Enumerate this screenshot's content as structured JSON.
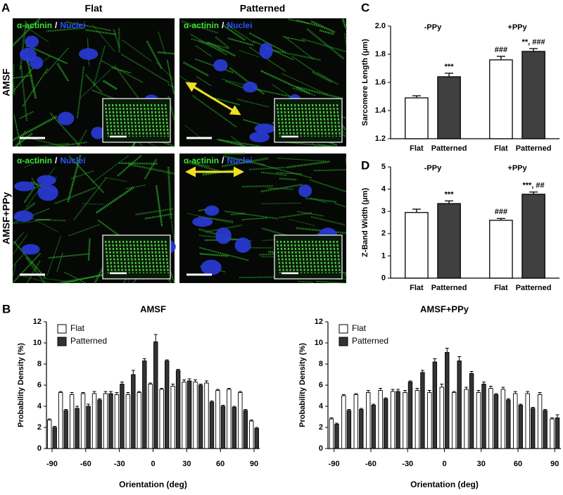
{
  "panel_labels": [
    "A",
    "B",
    "C",
    "D"
  ],
  "images": {
    "columns": [
      "Flat",
      "Patterned"
    ],
    "rows": [
      "AMSF",
      "AMSF+PPy"
    ],
    "stain_label": "α-actinin",
    "separator": "/",
    "nuclei_label": "Nuclei"
  },
  "chart_data": [
    {
      "type": "bar",
      "ylabel": "Sarcomere Length (μm)",
      "groups": [
        "-PPy",
        "+PPy"
      ],
      "categories": [
        "Flat",
        "Patterned",
        "Flat",
        "Patterned"
      ],
      "values": [
        1.49,
        1.64,
        1.76,
        1.82
      ],
      "errors": [
        0.015,
        0.025,
        0.025,
        0.02
      ],
      "colors": [
        "#ffffff",
        "#404040",
        "#ffffff",
        "#404040"
      ],
      "bar_labels": [
        null,
        "***",
        "###",
        "**, ###"
      ],
      "ylim": [
        1.2,
        2.0
      ],
      "yticks": [
        1.2,
        1.4,
        1.6,
        1.8,
        {
          "value": 2.0,
          "label": "2.0"
        }
      ]
    },
    {
      "type": "bar",
      "ylabel": "Z-Band Width (μm)",
      "groups": [
        "-PPy",
        "+PPy"
      ],
      "categories": [
        "Flat",
        "Patterned",
        "Flat",
        "Patterned"
      ],
      "values": [
        2.95,
        3.35,
        2.6,
        3.77
      ],
      "errors": [
        0.15,
        0.12,
        0.08,
        0.1
      ],
      "colors": [
        "#ffffff",
        "#404040",
        "#ffffff",
        "#404040"
      ],
      "bar_labels": [
        null,
        "***",
        "###",
        "***, ##"
      ],
      "ylim": [
        0,
        5
      ],
      "yticks": [
        0,
        1,
        2,
        3,
        4,
        5
      ]
    },
    {
      "type": "grouped_bar",
      "title": "AMSF",
      "xlabel": "Orientation (deg)",
      "ylabel": "Probability Density (%)",
      "x": [
        -90,
        -80,
        -70,
        -60,
        -50,
        -40,
        -30,
        -20,
        -10,
        0,
        10,
        20,
        30,
        40,
        50,
        60,
        70,
        80,
        90
      ],
      "series": [
        {
          "name": "Flat",
          "color": "#ffffff",
          "values": [
            2.7,
            5.3,
            5.1,
            5.2,
            5.2,
            5.2,
            5.1,
            5.1,
            5.3,
            6.1,
            5.6,
            5.9,
            6.3,
            6.3,
            6.2,
            5.5,
            5.6,
            5.3,
            2.6
          ],
          "errors": [
            0.1,
            0.1,
            0.2,
            0.1,
            0.2,
            0.2,
            0.2,
            0.2,
            0.1,
            0.1,
            0.1,
            0.2,
            0.2,
            0.2,
            0.2,
            0.1,
            0.1,
            0.1,
            0.1
          ]
        },
        {
          "name": "Patterned",
          "color": "#333333",
          "values": [
            2.0,
            3.6,
            3.8,
            4.0,
            4.6,
            5.2,
            6.1,
            7.0,
            8.3,
            10.1,
            8.3,
            7.4,
            6.4,
            6.0,
            4.4,
            4.0,
            3.9,
            3.6,
            1.9
          ],
          "errors": [
            0.1,
            0.1,
            0.2,
            0.2,
            0.1,
            0.2,
            0.2,
            0.4,
            0.2,
            0.7,
            0.1,
            0.1,
            0.2,
            0.1,
            0.1,
            0.1,
            0.1,
            0.1,
            0.1
          ]
        }
      ],
      "xlim": [
        -95,
        95
      ],
      "xticks": [
        -90,
        -60,
        -30,
        0,
        30,
        60,
        90
      ],
      "ylim": [
        0,
        12
      ],
      "yticks": [
        0,
        2,
        4,
        6,
        8,
        10,
        12
      ],
      "legend": "top-left"
    },
    {
      "type": "grouped_bar",
      "title": "AMSF+PPy",
      "xlabel": "Orientation (deg)",
      "ylabel": "Probability Density (%)",
      "x": [
        -90,
        -80,
        -70,
        -60,
        -50,
        -40,
        -30,
        -20,
        -10,
        0,
        10,
        20,
        30,
        40,
        50,
        60,
        70,
        80,
        90
      ],
      "series": [
        {
          "name": "Flat",
          "color": "#ffffff",
          "values": [
            2.8,
            5.0,
            5.1,
            5.3,
            5.5,
            5.4,
            5.3,
            5.5,
            5.3,
            5.8,
            5.3,
            5.6,
            5.3,
            5.7,
            5.6,
            5.2,
            5.2,
            5.1,
            2.8
          ],
          "errors": [
            0.1,
            0.1,
            0.1,
            0.2,
            0.2,
            0.2,
            0.2,
            0.2,
            0.2,
            0.3,
            0.1,
            0.2,
            0.2,
            0.2,
            0.2,
            0.2,
            0.2,
            0.2,
            0.1
          ]
        },
        {
          "name": "Patterned",
          "color": "#333333",
          "values": [
            2.3,
            3.6,
            3.7,
            4.1,
            4.7,
            5.4,
            6.3,
            7.2,
            8.2,
            9.1,
            8.3,
            7.1,
            6.1,
            5.1,
            4.6,
            4.1,
            3.8,
            3.6,
            2.9
          ],
          "errors": [
            0.1,
            0.1,
            0.1,
            0.1,
            0.1,
            0.2,
            0.1,
            0.2,
            0.3,
            0.4,
            0.4,
            0.2,
            0.2,
            0.1,
            0.1,
            0.1,
            0.1,
            0.1,
            0.3
          ]
        }
      ],
      "xlim": [
        -95,
        95
      ],
      "xticks": [
        -90,
        -60,
        -30,
        0,
        30,
        60,
        90
      ],
      "ylim": [
        0,
        12
      ],
      "yticks": [
        0,
        2,
        4,
        6,
        8,
        10,
        12
      ],
      "legend": "top-left"
    }
  ]
}
